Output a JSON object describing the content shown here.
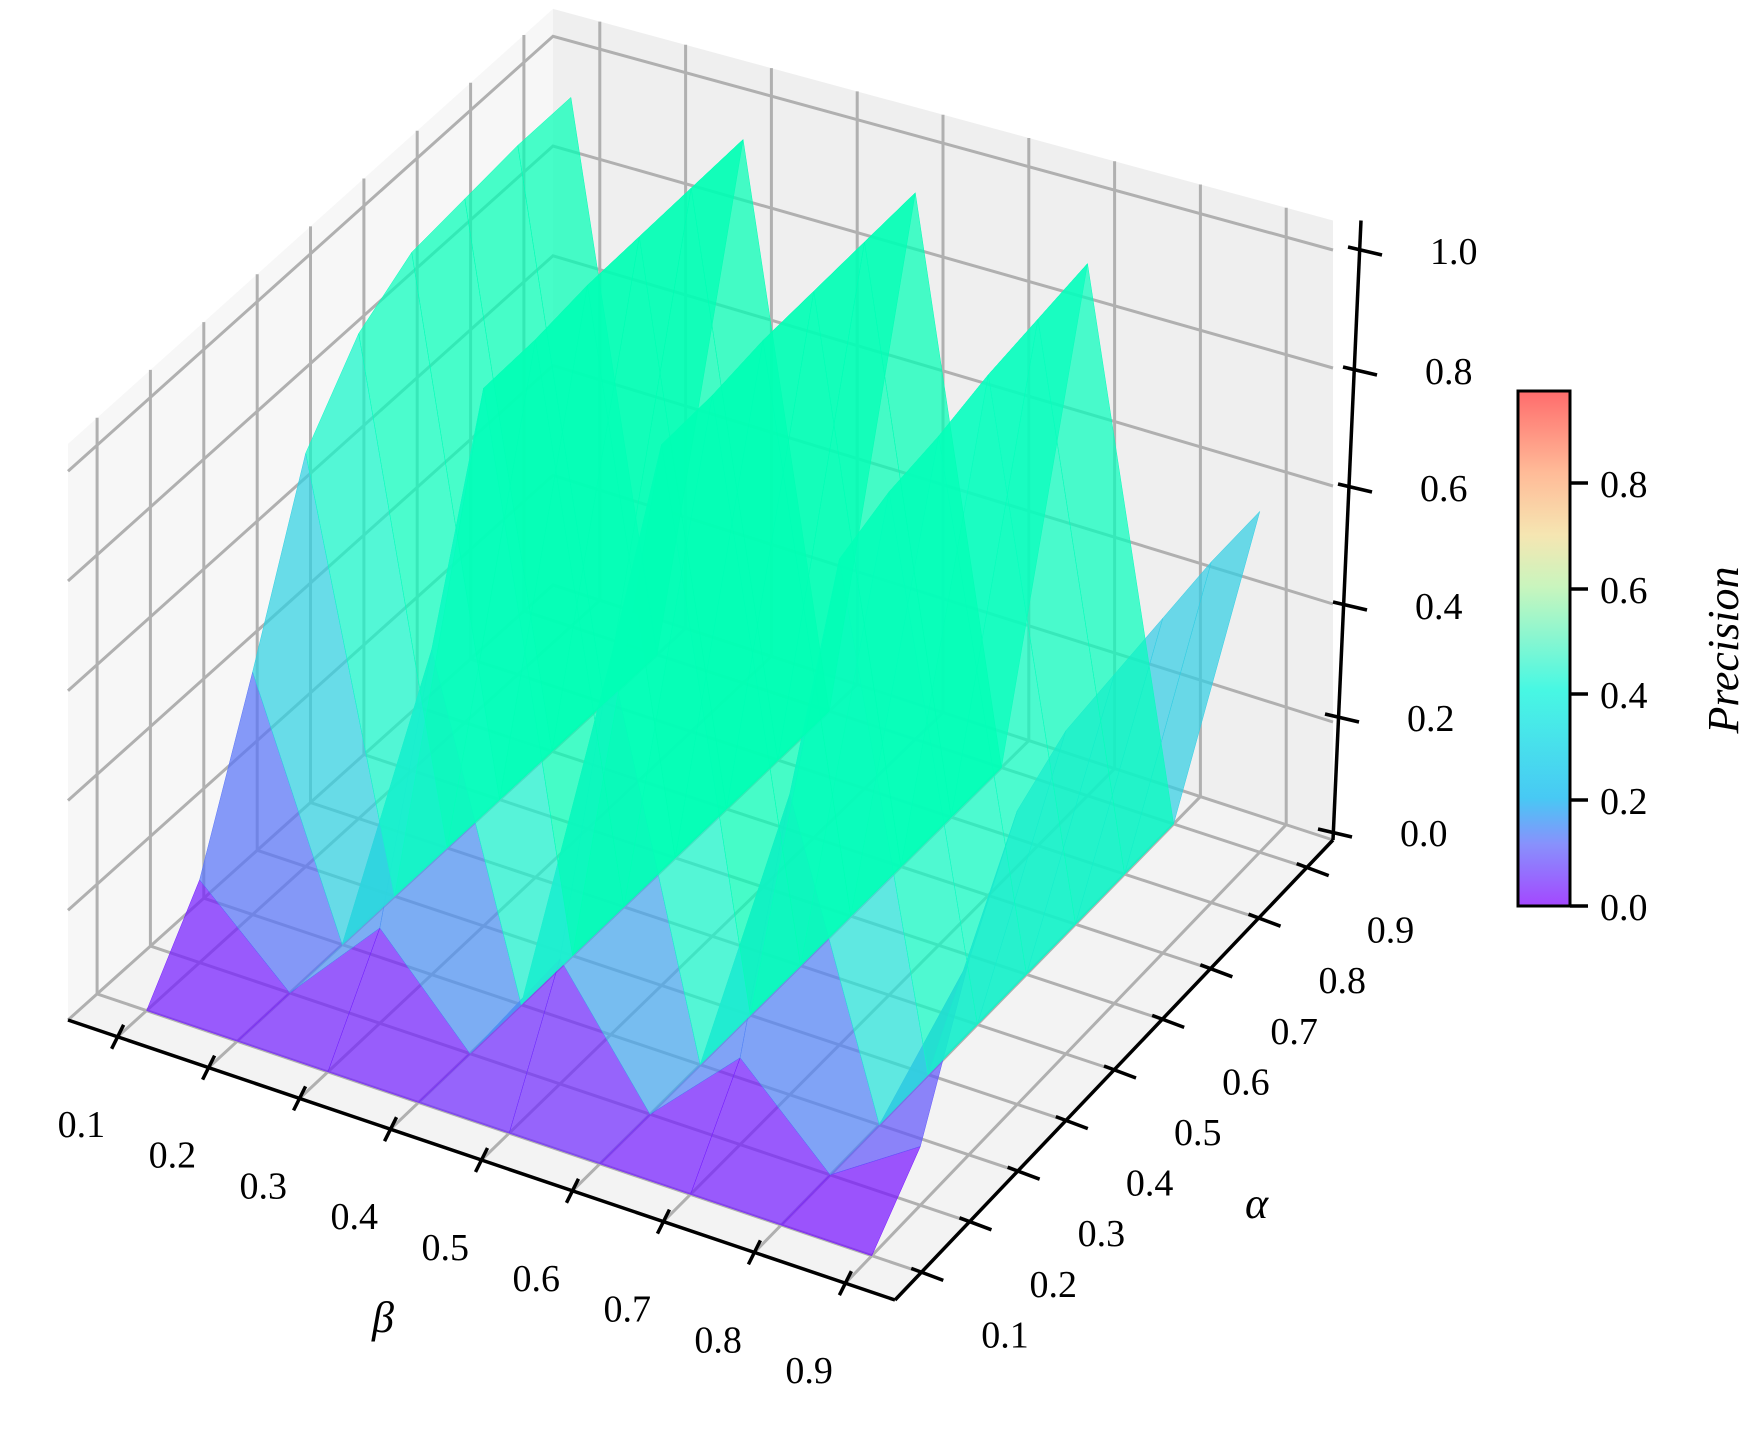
{
  "chart_data": {
    "type": "surface3d",
    "title": "",
    "xlabel": "β",
    "ylabel": "α",
    "zlabel": "",
    "colorbar_label": "Precision",
    "colormap": "rainbow",
    "x_ticks": [
      "0.1",
      "0.2",
      "0.3",
      "0.4",
      "0.5",
      "0.6",
      "0.7",
      "0.8",
      "0.9"
    ],
    "y_ticks": [
      "0.1",
      "0.2",
      "0.3",
      "0.4",
      "0.5",
      "0.6",
      "0.7",
      "0.8",
      "0.9"
    ],
    "z_ticks": [
      "0.0",
      "0.2",
      "0.4",
      "0.6",
      "0.8",
      "1.0"
    ],
    "colorbar_ticks": [
      "0.0",
      "0.2",
      "0.4",
      "0.6",
      "0.8"
    ],
    "zlim": [
      0,
      1.0
    ],
    "colorbar_range": [
      0,
      0.97
    ],
    "beta": [
      0.1,
      0.2,
      0.3,
      0.4,
      0.5,
      0.6,
      0.7,
      0.8,
      0.9
    ],
    "alpha": [
      0.1,
      0.2,
      0.3,
      0.4,
      0.5,
      0.6,
      0.7,
      0.8,
      0.9
    ],
    "z_rows_by_alpha": [
      [
        0.0,
        0.0,
        0.0,
        0.0,
        0.0,
        0.0,
        0.0,
        0.0,
        0.0
      ],
      [
        0.15,
        0.0,
        0.17,
        0.0,
        0.22,
        0.0,
        0.15,
        0.0,
        0.1
      ],
      [
        0.44,
        0.0,
        0.58,
        0.0,
        0.66,
        0.0,
        0.52,
        0.0,
        0.33
      ],
      [
        0.75,
        0.0,
        0.96,
        0.0,
        0.95,
        0.0,
        0.84,
        0.0,
        0.5
      ],
      [
        0.88,
        0.0,
        0.96,
        0.0,
        0.95,
        0.0,
        0.87,
        0.0,
        0.55
      ],
      [
        0.94,
        0.0,
        0.97,
        0.0,
        0.96,
        0.0,
        0.88,
        0.0,
        0.56
      ],
      [
        0.95,
        0.0,
        0.97,
        0.0,
        0.96,
        0.0,
        0.9,
        0.0,
        0.57
      ],
      [
        0.96,
        0.0,
        0.97,
        0.0,
        0.96,
        0.0,
        0.91,
        0.0,
        0.58
      ],
      [
        0.96,
        0.0,
        0.97,
        0.0,
        0.96,
        0.0,
        0.92,
        0.0,
        0.58
      ]
    ],
    "grid": true,
    "legend_position": "colorbar-right"
  },
  "labels": {
    "xlabel": "β",
    "ylabel": "α",
    "colorbar": "Precision"
  }
}
